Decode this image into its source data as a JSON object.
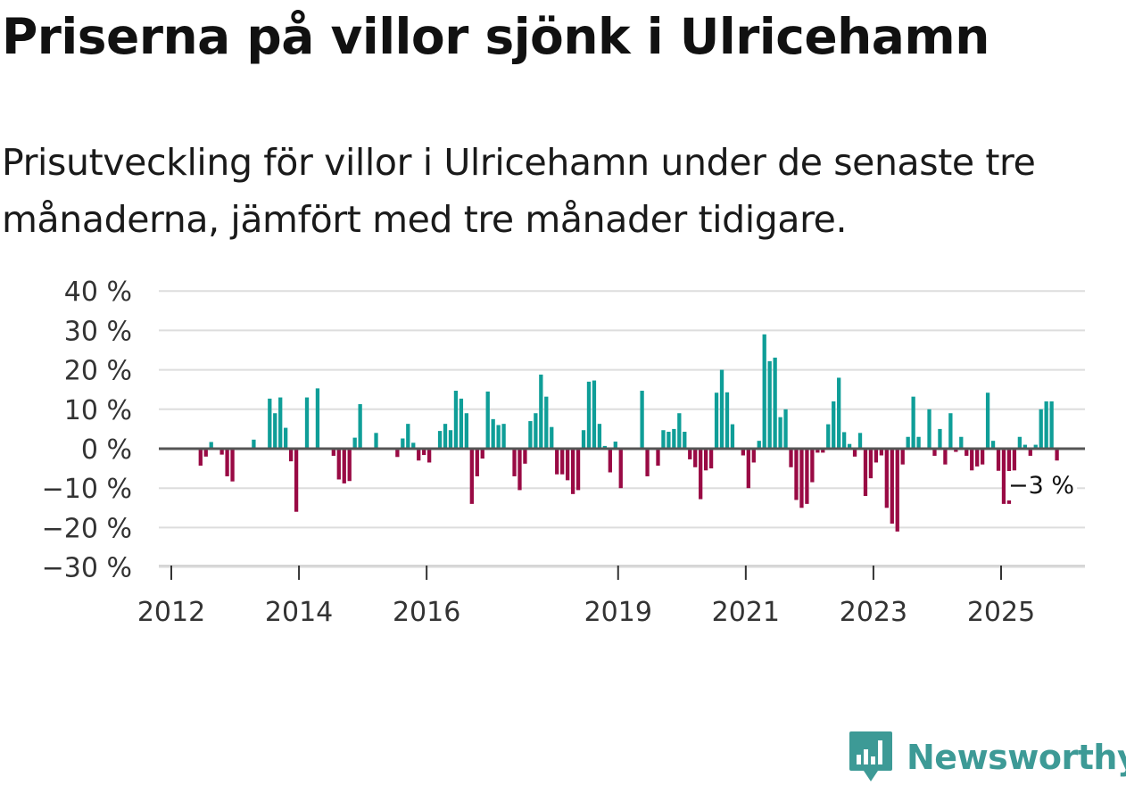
{
  "title": "Priserna på villor sjönk i Ulricehamn",
  "subtitle": "Prisutveckling för villor i Ulricehamn under de senaste tre månaderna, jämfört med tre månader tidigare.",
  "brand": {
    "name": "Newsworthy",
    "color": "#3d9a96"
  },
  "colors": {
    "positive": "#0f9e98",
    "negative": "#990a44",
    "grid": "#dddddd",
    "zero": "#555555",
    "axis": "#cccccc"
  },
  "chart_data": {
    "type": "bar",
    "title": "Priserna på villor sjönk i Ulricehamn",
    "xlabel": "",
    "ylabel": "",
    "x_start": 2012.0,
    "x_step": 0.0833333,
    "xlim": [
      2012.0,
      2026.4
    ],
    "ylim": [
      -30,
      40
    ],
    "yticks": [
      -30,
      -20,
      -10,
      0,
      10,
      20,
      30,
      40
    ],
    "ytick_labels": [
      "−30 %",
      "−20 %",
      "−10 %",
      "0 %",
      "10 %",
      "20 %",
      "30 %",
      "40 %"
    ],
    "xticks": [
      2012,
      2014,
      2016,
      2019,
      2021,
      2023,
      2025
    ],
    "xtick_labels": [
      "2012",
      "2014",
      "2016",
      "2019",
      "2021",
      "2023",
      "2025"
    ],
    "values": [
      0,
      0,
      0,
      0,
      0,
      -4.3,
      -2,
      1.7,
      0,
      -1.5,
      -7,
      -8.3,
      0,
      0,
      0,
      2.3,
      0,
      0,
      12.7,
      9,
      13,
      5.3,
      -3.2,
      -16,
      0,
      13,
      0,
      15.3,
      0,
      0,
      -1.8,
      -7.8,
      -8.8,
      -8.2,
      2.8,
      11.3,
      0,
      0,
      4,
      0,
      0,
      0,
      -2.1,
      2.6,
      6.3,
      1.5,
      -3,
      -1.6,
      -3.5,
      0,
      4.5,
      6.3,
      4.7,
      14.7,
      12.7,
      9,
      -14,
      -7,
      -2.5,
      14.5,
      7.5,
      6,
      6.3,
      0,
      -7,
      -10.5,
      -3.8,
      7,
      9,
      18.8,
      13.2,
      5.5,
      -6.5,
      -6.5,
      -8,
      -11.5,
      -10.5,
      4.7,
      17,
      17.3,
      6.3,
      0.7,
      -6,
      1.8,
      -10,
      0,
      0,
      0,
      14.7,
      -7,
      0,
      -4.3,
      4.7,
      4.3,
      5,
      9,
      4.3,
      -2.7,
      -4.7,
      -12.8,
      -5.5,
      -5,
      14.2,
      20,
      14.3,
      6.2,
      0,
      -1.7,
      -10,
      -3.5,
      2,
      29,
      22.2,
      23.1,
      8,
      10,
      -4.7,
      -13,
      -15,
      -14,
      -8.5,
      -1,
      -1,
      6.2,
      12,
      18,
      4.2,
      1.2,
      -2,
      4,
      -12,
      -7.5,
      -3.5,
      -1.7,
      -15,
      -19,
      -21,
      -4,
      3,
      13.2,
      3,
      0,
      10,
      -1.8,
      5,
      -4,
      9,
      -0.8,
      3,
      -1.8,
      -5.5,
      -4.5,
      -4,
      14.2,
      2,
      -5.6,
      -14,
      -14,
      -5.5,
      3,
      1,
      -1.8,
      1,
      10,
      12,
      12,
      -3,
      0
    ],
    "annotations": [
      {
        "x": 2025.75,
        "y": -3,
        "label": "−3 %"
      }
    ]
  }
}
